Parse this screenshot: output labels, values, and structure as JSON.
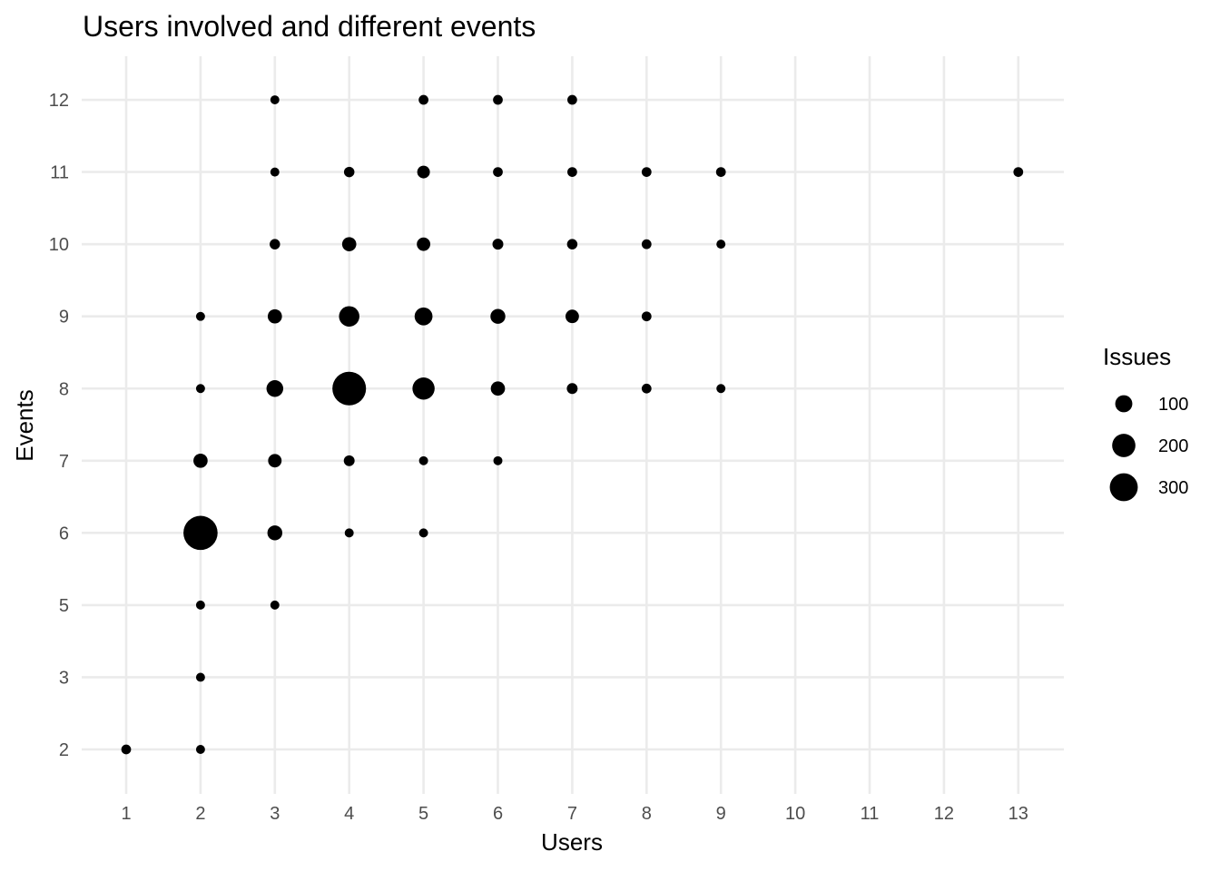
{
  "chart_data": {
    "type": "scatter",
    "title": "Users involved and different events",
    "xlabel": "Users",
    "ylabel": "Events",
    "x_ticks": [
      "1",
      "2",
      "3",
      "4",
      "5",
      "6",
      "7",
      "8",
      "9",
      "10",
      "11",
      "12",
      "13"
    ],
    "y_ticks": [
      "2",
      "3",
      "5",
      "6",
      "7",
      "8",
      "9",
      "10",
      "11",
      "12"
    ],
    "grid": true,
    "legend": {
      "title": "Issues",
      "position": "right",
      "breaks": [
        100,
        200,
        300
      ]
    },
    "points": [
      {
        "users": "1",
        "events": "2",
        "issues": 15
      },
      {
        "users": "2",
        "events": "2",
        "issues": 12
      },
      {
        "users": "2",
        "events": "3",
        "issues": 12
      },
      {
        "users": "2",
        "events": "5",
        "issues": 12
      },
      {
        "users": "2",
        "events": "6",
        "issues": 300
      },
      {
        "users": "2",
        "events": "7",
        "issues": 40
      },
      {
        "users": "2",
        "events": "8",
        "issues": 12
      },
      {
        "users": "2",
        "events": "9",
        "issues": 12
      },
      {
        "users": "3",
        "events": "5",
        "issues": 12
      },
      {
        "users": "3",
        "events": "6",
        "issues": 45
      },
      {
        "users": "3",
        "events": "7",
        "issues": 35
      },
      {
        "users": "3",
        "events": "8",
        "issues": 60
      },
      {
        "users": "3",
        "events": "9",
        "issues": 40
      },
      {
        "users": "3",
        "events": "10",
        "issues": 18
      },
      {
        "users": "3",
        "events": "11",
        "issues": 12
      },
      {
        "users": "3",
        "events": "12",
        "issues": 12
      },
      {
        "users": "4",
        "events": "6",
        "issues": 12
      },
      {
        "users": "4",
        "events": "7",
        "issues": 20
      },
      {
        "users": "4",
        "events": "8",
        "issues": 290
      },
      {
        "users": "4",
        "events": "9",
        "issues": 95
      },
      {
        "users": "4",
        "events": "10",
        "issues": 40
      },
      {
        "users": "4",
        "events": "11",
        "issues": 18
      },
      {
        "users": "5",
        "events": "6",
        "issues": 12
      },
      {
        "users": "5",
        "events": "7",
        "issues": 12
      },
      {
        "users": "5",
        "events": "8",
        "issues": 115
      },
      {
        "users": "5",
        "events": "9",
        "issues": 70
      },
      {
        "users": "5",
        "events": "10",
        "issues": 35
      },
      {
        "users": "5",
        "events": "11",
        "issues": 30
      },
      {
        "users": "5",
        "events": "12",
        "issues": 15
      },
      {
        "users": "6",
        "events": "7",
        "issues": 12
      },
      {
        "users": "6",
        "events": "8",
        "issues": 40
      },
      {
        "users": "6",
        "events": "9",
        "issues": 45
      },
      {
        "users": "6",
        "events": "10",
        "issues": 20
      },
      {
        "users": "6",
        "events": "11",
        "issues": 15
      },
      {
        "users": "6",
        "events": "12",
        "issues": 15
      },
      {
        "users": "7",
        "events": "8",
        "issues": 20
      },
      {
        "users": "7",
        "events": "9",
        "issues": 35
      },
      {
        "users": "7",
        "events": "10",
        "issues": 18
      },
      {
        "users": "7",
        "events": "11",
        "issues": 15
      },
      {
        "users": "7",
        "events": "12",
        "issues": 15
      },
      {
        "users": "8",
        "events": "8",
        "issues": 15
      },
      {
        "users": "8",
        "events": "9",
        "issues": 15
      },
      {
        "users": "8",
        "events": "10",
        "issues": 15
      },
      {
        "users": "8",
        "events": "11",
        "issues": 15
      },
      {
        "users": "9",
        "events": "8",
        "issues": 12
      },
      {
        "users": "9",
        "events": "10",
        "issues": 12
      },
      {
        "users": "9",
        "events": "11",
        "issues": 15
      },
      {
        "users": "13",
        "events": "11",
        "issues": 15
      }
    ]
  }
}
